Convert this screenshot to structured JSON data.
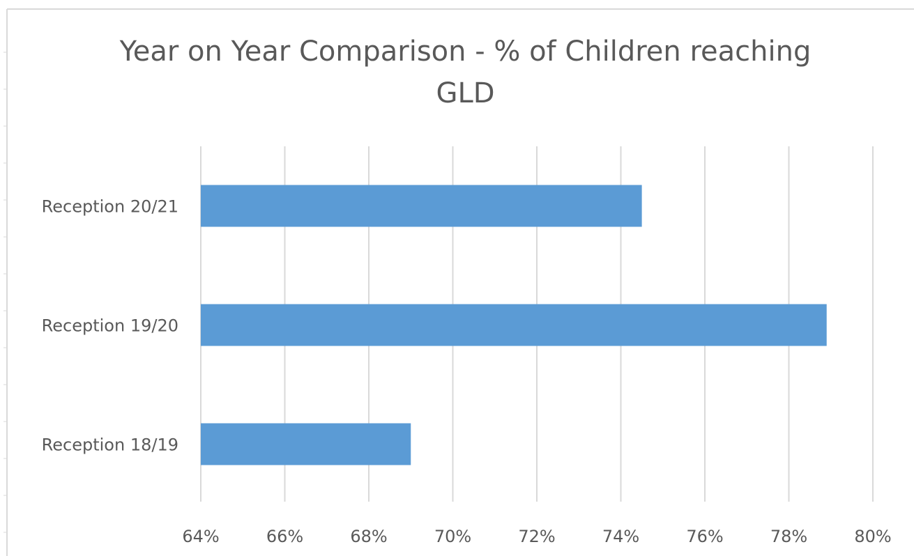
{
  "chart_data": {
    "type": "bar",
    "orientation": "horizontal",
    "title_lines": [
      "Year on Year Comparison - % of Children reaching",
      "GLD"
    ],
    "categories": [
      "Reception 18/19",
      "Reception 19/20",
      "Reception 20/21"
    ],
    "values": [
      69.0,
      78.9,
      74.5
    ],
    "xlim": [
      64,
      80
    ],
    "x_ticks": [
      64,
      66,
      68,
      70,
      72,
      74,
      76,
      78,
      80
    ],
    "x_tick_labels": [
      "64%",
      "66%",
      "68%",
      "70%",
      "72%",
      "74%",
      "76%",
      "78%",
      "80%"
    ],
    "grid": "vertical",
    "legend": "none",
    "bar_color": "#5b9bd5",
    "grid_color": "#d9d9d9",
    "text_color": "#595959"
  }
}
